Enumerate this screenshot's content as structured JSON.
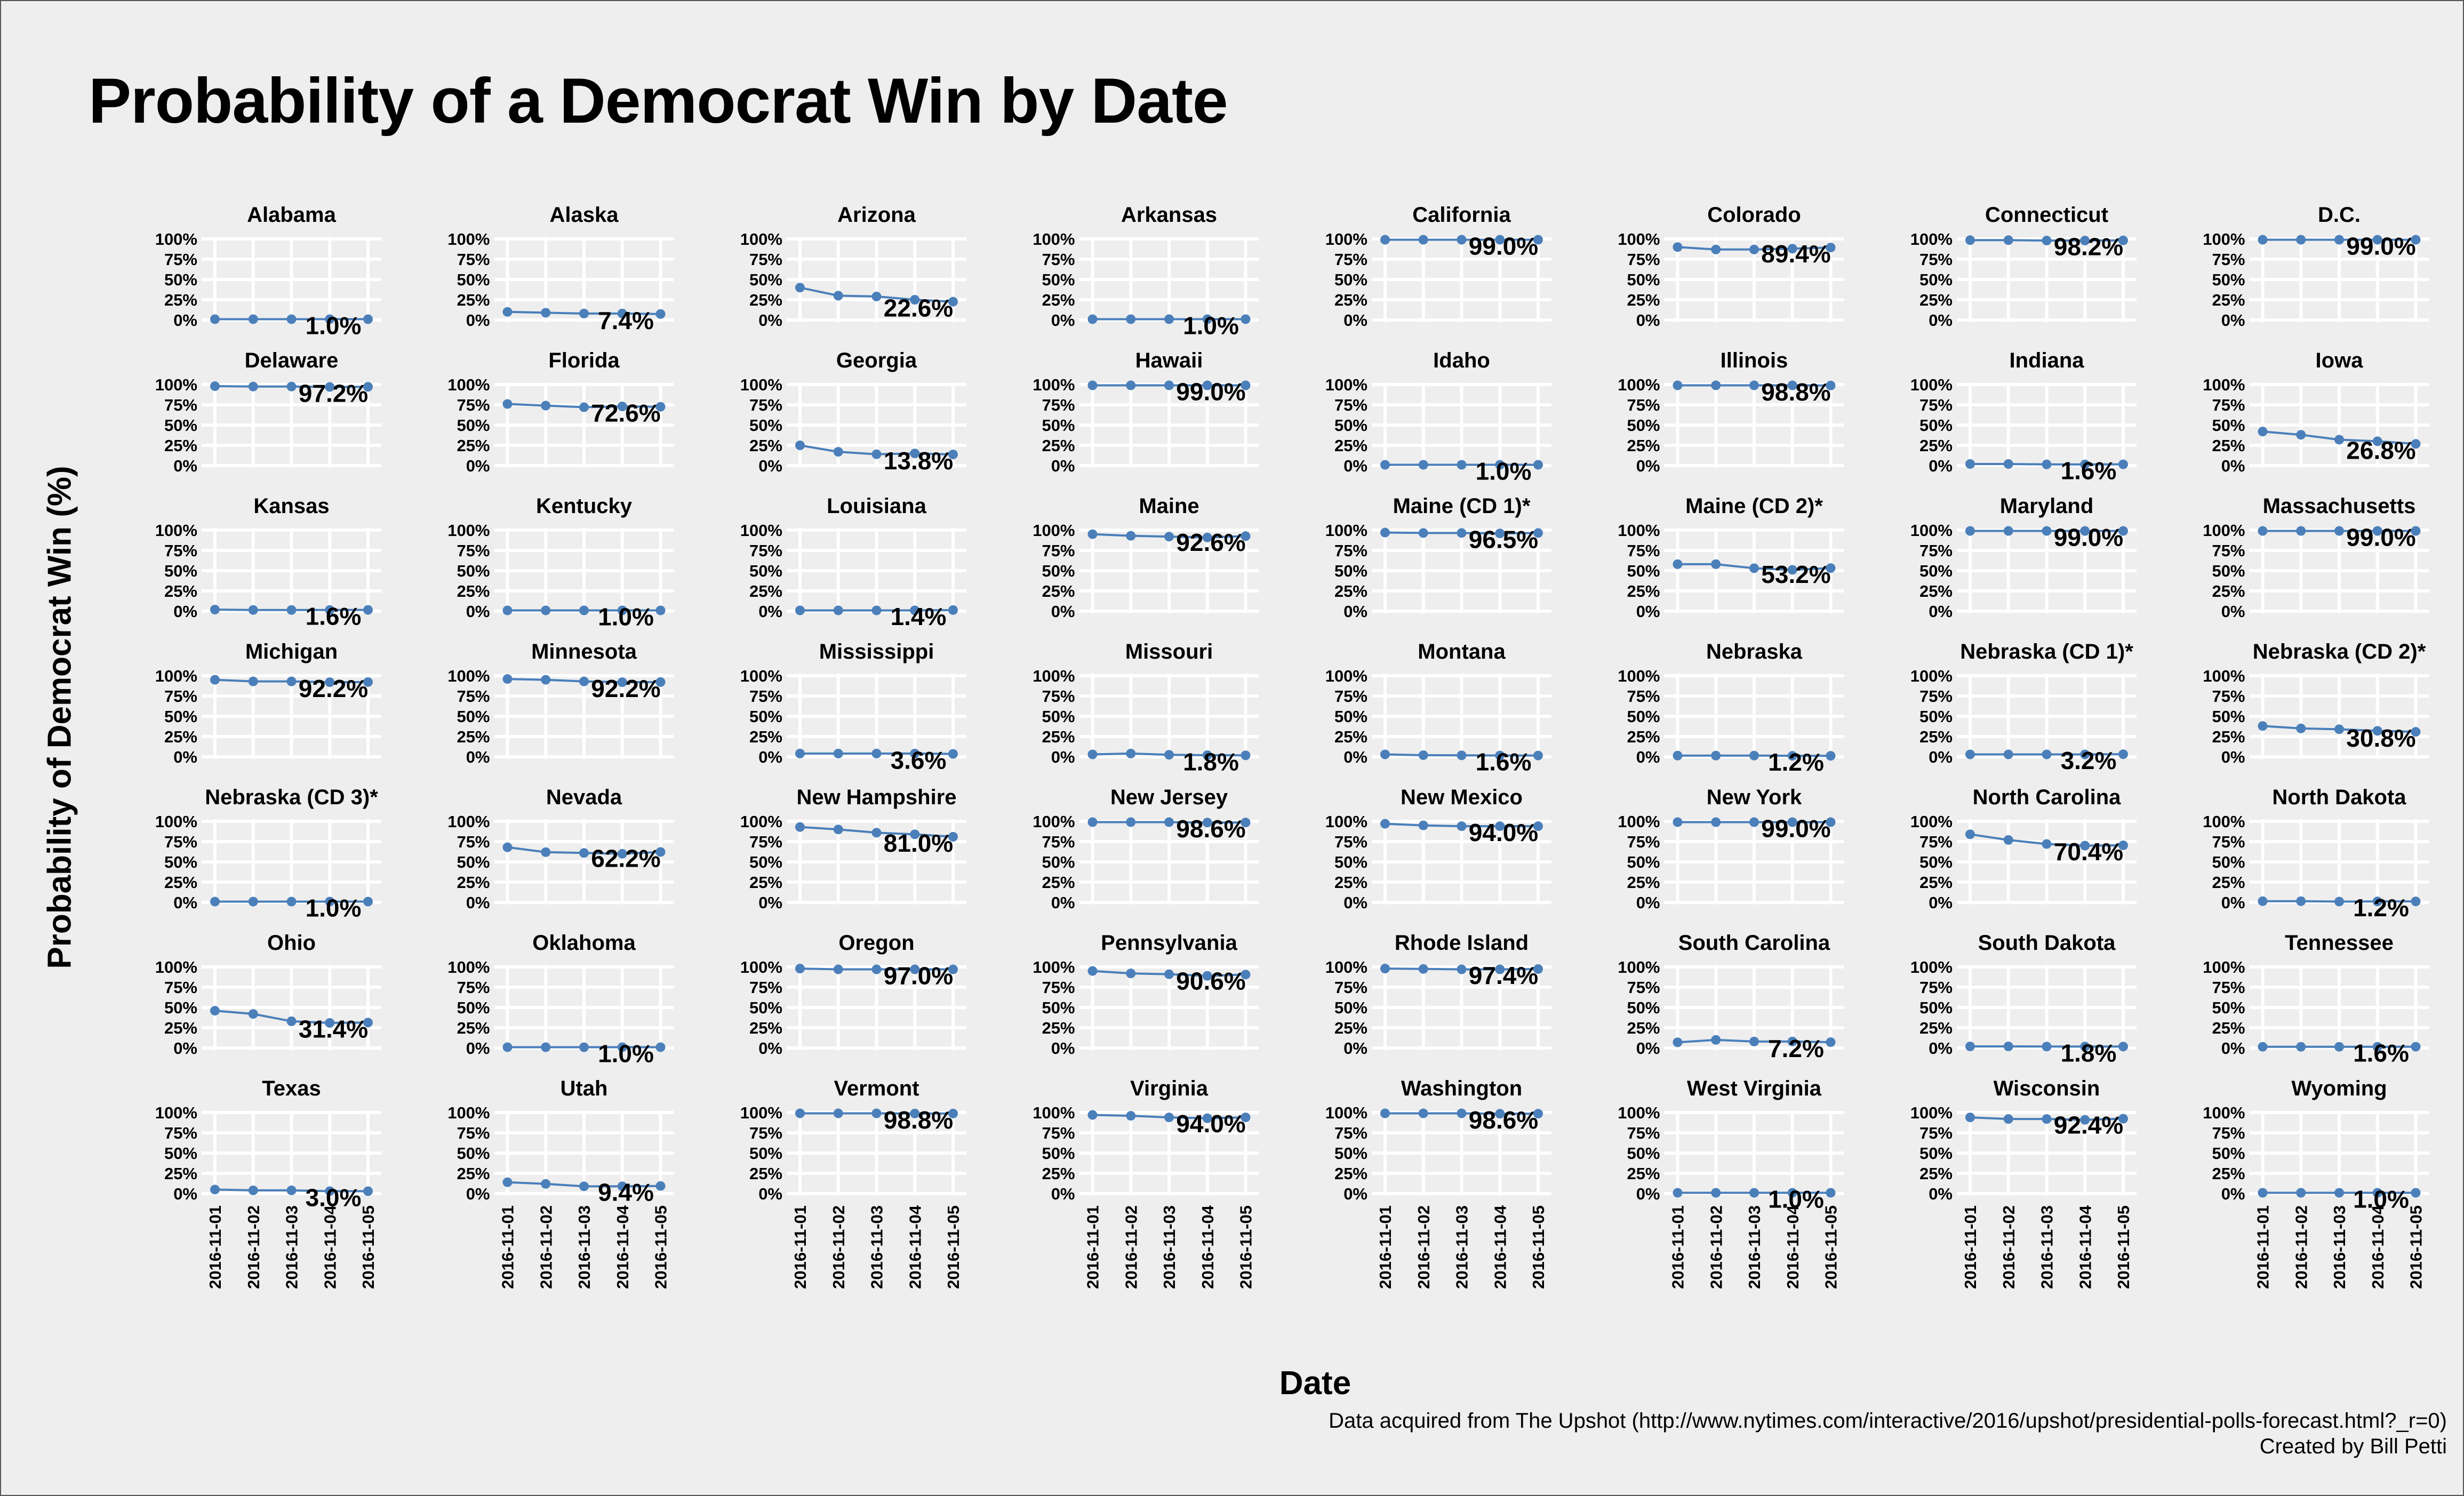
{
  "title": "Probability of a Democrat Win by Date",
  "xlabel": "Date",
  "ylabel": "Probability of Democrat Win (%)",
  "captions": [
    "Data acquired from The Upshot (http://www.nytimes.com/interactive/2016/upshot/presidential-polls-forecast.html?_r=0)",
    "Created by Bill Petti"
  ],
  "chart_data": {
    "type": "line",
    "layout": "facet-grid",
    "facet_columns": 8,
    "x": [
      "2016-11-01",
      "2016-11-02",
      "2016-11-03",
      "2016-11-04",
      "2016-11-05"
    ],
    "ylim": [
      0,
      100
    ],
    "yticks": [
      "0%",
      "25%",
      "50%",
      "75%",
      "100%"
    ],
    "grid": true,
    "color": "#4a7fba",
    "panels": [
      {
        "name": "Alabama",
        "values": [
          1,
          1,
          1,
          1,
          1
        ],
        "label": "1.0%"
      },
      {
        "name": "Alaska",
        "values": [
          10,
          9,
          8,
          8,
          7.4
        ],
        "label": "7.4%"
      },
      {
        "name": "Arizona",
        "values": [
          40,
          30,
          29,
          25,
          22.6
        ],
        "label": "22.6%"
      },
      {
        "name": "Arkansas",
        "values": [
          1,
          1,
          1,
          1,
          1
        ],
        "label": "1.0%"
      },
      {
        "name": "California",
        "values": [
          99,
          99,
          99,
          99,
          99
        ],
        "label": "99.0%"
      },
      {
        "name": "Colorado",
        "values": [
          90,
          87,
          87,
          88,
          89.4
        ],
        "label": "89.4%"
      },
      {
        "name": "Connecticut",
        "values": [
          98.5,
          98.5,
          98,
          98,
          98.2
        ],
        "label": "98.2%"
      },
      {
        "name": "D.C.",
        "values": [
          99,
          99,
          99,
          99,
          99
        ],
        "label": "99.0%"
      },
      {
        "name": "Delaware",
        "values": [
          98,
          97.5,
          97.5,
          97,
          97.2
        ],
        "label": "97.2%"
      },
      {
        "name": "Florida",
        "values": [
          76,
          74,
          72,
          73,
          72.6
        ],
        "label": "72.6%"
      },
      {
        "name": "Georgia",
        "values": [
          25,
          17,
          14,
          15,
          13.8
        ],
        "label": "13.8%"
      },
      {
        "name": "Hawaii",
        "values": [
          99,
          99,
          99,
          99,
          99
        ],
        "label": "99.0%"
      },
      {
        "name": "Idaho",
        "values": [
          1,
          1,
          1,
          1,
          1
        ],
        "label": "1.0%"
      },
      {
        "name": "Illinois",
        "values": [
          99,
          99,
          99,
          99,
          98.8
        ],
        "label": "98.8%"
      },
      {
        "name": "Indiana",
        "values": [
          2,
          2,
          1.5,
          1.5,
          1.6
        ],
        "label": "1.6%"
      },
      {
        "name": "Iowa",
        "values": [
          42,
          38,
          32,
          30,
          26.8
        ],
        "label": "26.8%"
      },
      {
        "name": "Kansas",
        "values": [
          2,
          1.5,
          1.5,
          1.5,
          1.6
        ],
        "label": "1.6%"
      },
      {
        "name": "Kentucky",
        "values": [
          1,
          1,
          1,
          1,
          1
        ],
        "label": "1.0%"
      },
      {
        "name": "Louisiana",
        "values": [
          1,
          1,
          1,
          1,
          1.4
        ],
        "label": "1.4%"
      },
      {
        "name": "Maine",
        "values": [
          95,
          93,
          92,
          91,
          92.6
        ],
        "label": "92.6%"
      },
      {
        "name": "Maine (CD 1)*",
        "values": [
          97,
          96.5,
          96.5,
          96,
          96.5
        ],
        "label": "96.5%"
      },
      {
        "name": "Maine (CD 2)*",
        "values": [
          58,
          58,
          53,
          51,
          53.2
        ],
        "label": "53.2%"
      },
      {
        "name": "Maryland",
        "values": [
          99,
          99,
          99,
          99,
          99
        ],
        "label": "99.0%"
      },
      {
        "name": "Massachusetts",
        "values": [
          99,
          99,
          99,
          99,
          99
        ],
        "label": "99.0%"
      },
      {
        "name": "Michigan",
        "values": [
          95,
          93,
          93,
          92,
          92.2
        ],
        "label": "92.2%"
      },
      {
        "name": "Minnesota",
        "values": [
          96,
          95,
          93,
          92,
          92.2
        ],
        "label": "92.2%"
      },
      {
        "name": "Mississippi",
        "values": [
          4,
          4,
          4,
          4,
          3.6
        ],
        "label": "3.6%"
      },
      {
        "name": "Missouri",
        "values": [
          3,
          4,
          2.5,
          2,
          1.8
        ],
        "label": "1.8%"
      },
      {
        "name": "Montana",
        "values": [
          3,
          2,
          1.8,
          1.6,
          1.6
        ],
        "label": "1.6%"
      },
      {
        "name": "Nebraska",
        "values": [
          1.5,
          1.5,
          1.5,
          1.2,
          1.2
        ],
        "label": "1.2%"
      },
      {
        "name": "Nebraska (CD 1)*",
        "values": [
          3,
          3,
          3,
          3,
          3.2
        ],
        "label": "3.2%"
      },
      {
        "name": "Nebraska (CD 2)*",
        "values": [
          38,
          35,
          34,
          32,
          30.8
        ],
        "label": "30.8%"
      },
      {
        "name": "Nebraska (CD 3)*",
        "values": [
          1,
          1,
          1,
          1,
          1
        ],
        "label": "1.0%"
      },
      {
        "name": "Nevada",
        "values": [
          68,
          62,
          61,
          60,
          62.2
        ],
        "label": "62.2%"
      },
      {
        "name": "New Hampshire",
        "values": [
          93,
          90,
          86,
          84,
          81
        ],
        "label": "81.0%"
      },
      {
        "name": "New Jersey",
        "values": [
          99,
          99,
          99,
          98.5,
          98.6
        ],
        "label": "98.6%"
      },
      {
        "name": "New Mexico",
        "values": [
          97,
          95,
          94,
          94,
          94
        ],
        "label": "94.0%"
      },
      {
        "name": "New York",
        "values": [
          99,
          99,
          99,
          99,
          99
        ],
        "label": "99.0%"
      },
      {
        "name": "North Carolina",
        "values": [
          84,
          77,
          72,
          70,
          70.4
        ],
        "label": "70.4%"
      },
      {
        "name": "North Dakota",
        "values": [
          1.5,
          1.5,
          1,
          1.2,
          1.2
        ],
        "label": "1.2%"
      },
      {
        "name": "Ohio",
        "values": [
          46,
          42,
          33,
          31,
          31.4
        ],
        "label": "31.4%"
      },
      {
        "name": "Oklahoma",
        "values": [
          1,
          1,
          1,
          1,
          1
        ],
        "label": "1.0%"
      },
      {
        "name": "Oregon",
        "values": [
          98,
          97,
          97,
          97,
          97
        ],
        "label": "97.0%"
      },
      {
        "name": "Pennsylvania",
        "values": [
          95,
          92,
          91,
          89,
          90.6
        ],
        "label": "90.6%"
      },
      {
        "name": "Rhode Island",
        "values": [
          98,
          97.5,
          97,
          97,
          97.4
        ],
        "label": "97.4%"
      },
      {
        "name": "South Carolina",
        "values": [
          7,
          10,
          8,
          8,
          7.2
        ],
        "label": "7.2%"
      },
      {
        "name": "South Dakota",
        "values": [
          2,
          2,
          1.8,
          1.8,
          1.8
        ],
        "label": "1.8%"
      },
      {
        "name": "Tennessee",
        "values": [
          1.5,
          1.5,
          1.5,
          1.5,
          1.6
        ],
        "label": "1.6%"
      },
      {
        "name": "Texas",
        "values": [
          5,
          4,
          4,
          3,
          3
        ],
        "label": "3.0%"
      },
      {
        "name": "Utah",
        "values": [
          14,
          12,
          9,
          9,
          9.4
        ],
        "label": "9.4%"
      },
      {
        "name": "Vermont",
        "values": [
          99,
          99,
          99,
          98.8,
          98.8
        ],
        "label": "98.8%"
      },
      {
        "name": "Virginia",
        "values": [
          97,
          96,
          94,
          93,
          94
        ],
        "label": "94.0%"
      },
      {
        "name": "Washington",
        "values": [
          99,
          99,
          99,
          98.5,
          98.6
        ],
        "label": "98.6%"
      },
      {
        "name": "West Virginia",
        "values": [
          1,
          1,
          1,
          1,
          1
        ],
        "label": "1.0%"
      },
      {
        "name": "Wisconsin",
        "values": [
          94,
          92,
          92,
          91,
          92.4
        ],
        "label": "92.4%"
      },
      {
        "name": "Wyoming",
        "values": [
          1,
          1,
          1,
          1,
          1
        ],
        "label": "1.0%"
      }
    ]
  }
}
